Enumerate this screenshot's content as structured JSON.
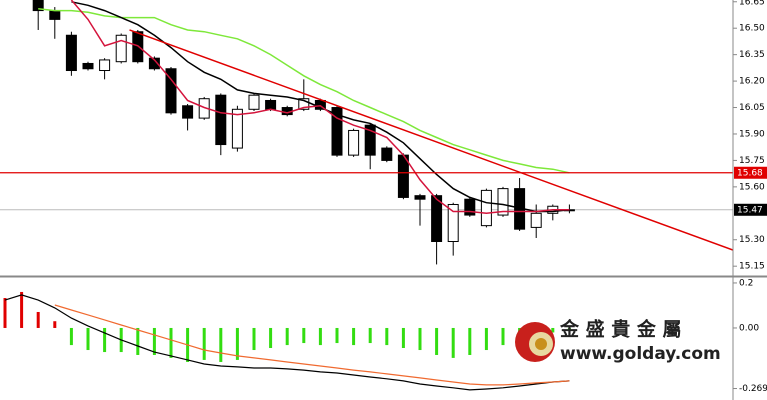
{
  "chart_data": [
    {
      "type": "candlestick",
      "open": [
        null,
        null,
        16.66,
        16.6,
        16.46,
        16.3,
        16.26,
        16.31,
        16.48,
        16.33,
        16.27,
        16.06,
        15.99,
        16.12,
        15.82,
        16.04,
        16.09,
        16.05,
        16.04,
        16.09,
        16.05,
        15.78,
        15.95,
        15.82,
        15.78,
        15.55,
        15.55,
        15.29,
        15.53,
        15.38,
        15.44,
        15.59,
        15.37,
        15.45,
        15.47
      ],
      "high": [
        null,
        null,
        16.69,
        16.62,
        16.48,
        16.31,
        16.33,
        16.47,
        16.49,
        16.34,
        16.28,
        16.07,
        16.11,
        16.13,
        16.06,
        16.13,
        16.1,
        16.06,
        16.21,
        16.1,
        16.06,
        15.93,
        15.96,
        15.83,
        15.79,
        15.56,
        15.56,
        15.51,
        15.54,
        15.59,
        15.6,
        15.65,
        15.5,
        15.5,
        15.5
      ],
      "low": [
        null,
        null,
        16.49,
        16.44,
        16.23,
        16.26,
        16.21,
        16.3,
        16.3,
        16.26,
        16.01,
        15.92,
        15.98,
        15.78,
        15.8,
        16.03,
        16.03,
        16.0,
        16.03,
        16.03,
        15.77,
        15.77,
        15.7,
        15.74,
        15.53,
        15.38,
        15.16,
        15.21,
        15.43,
        15.37,
        15.43,
        15.35,
        15.31,
        15.41,
        15.45
      ],
      "close": [
        null,
        null,
        16.6,
        16.55,
        16.26,
        16.27,
        16.32,
        16.46,
        16.31,
        16.27,
        16.02,
        15.99,
        16.1,
        15.84,
        16.04,
        16.12,
        16.04,
        16.01,
        16.1,
        16.04,
        15.78,
        15.92,
        15.78,
        15.75,
        15.54,
        15.53,
        15.29,
        15.5,
        15.44,
        15.58,
        15.59,
        15.36,
        15.45,
        15.49,
        15.47
      ],
      "up_color": "#ffffff",
      "down_color": "#000000",
      "series": [
        {
          "color": "#7ee83a",
          "values": [
            null,
            null,
            16.61,
            16.6,
            16.6,
            16.59,
            16.57,
            16.56,
            16.56,
            16.56,
            16.52,
            16.49,
            16.48,
            16.46,
            16.44,
            16.4,
            16.35,
            16.29,
            16.23,
            16.18,
            16.14,
            16.09,
            16.05,
            16.01,
            15.97,
            15.92,
            15.88,
            15.84,
            15.81,
            15.78,
            15.75,
            15.73,
            15.71,
            15.7,
            15.68
          ]
        },
        {
          "color": "#000000",
          "values": [
            null,
            null,
            null,
            null,
            16.65,
            16.63,
            16.6,
            16.56,
            16.52,
            16.46,
            16.39,
            16.31,
            16.25,
            16.21,
            16.15,
            16.13,
            16.12,
            16.11,
            16.09,
            16.05,
            16.01,
            15.98,
            15.96,
            15.91,
            15.85,
            15.76,
            15.67,
            15.59,
            15.54,
            15.51,
            15.5,
            15.48,
            15.46,
            15.46,
            15.47
          ]
        },
        {
          "color": "#d4143c",
          "values": [
            null,
            null,
            null,
            null,
            16.66,
            16.55,
            16.4,
            16.43,
            16.4,
            16.32,
            16.21,
            16.09,
            16.05,
            16.02,
            16.01,
            16.02,
            16.04,
            16.02,
            16.05,
            16.06,
            15.99,
            15.95,
            15.92,
            15.88,
            15.78,
            15.64,
            15.53,
            15.46,
            15.46,
            15.45,
            15.46,
            15.46,
            15.46,
            15.47,
            15.47
          ]
        }
      ],
      "trendline": {
        "x": [
          7.5,
          43.9
        ],
        "values": [
          16.49,
          15.24
        ],
        "color": "#e00000"
      },
      "hline": {
        "value": 15.68,
        "color": "#e00000"
      },
      "last": 15.47,
      "ylim": [
        15.1,
        16.66
      ],
      "yticks": [
        16.65,
        {
          "value": 16.5,
          "label": "16.50"
        },
        16.35,
        {
          "value": 16.2,
          "label": "16.20"
        },
        16.05,
        {
          "value": 15.9,
          "label": "15.90"
        },
        15.75,
        {
          "value": 15.6,
          "label": "15.60"
        },
        {
          "value": 15.3,
          "label": "15.30"
        },
        15.15
      ]
    },
    {
      "type": "macd",
      "histogram": {
        "pos_color": "#e00000",
        "neg_color": "#33dd11",
        "values": [
          0.133,
          0.16,
          0.071,
          0.03,
          -0.076,
          -0.098,
          -0.107,
          -0.107,
          -0.12,
          -0.12,
          -0.133,
          -0.151,
          -0.142,
          -0.151,
          -0.142,
          -0.098,
          -0.089,
          -0.076,
          -0.067,
          -0.076,
          -0.067,
          -0.076,
          -0.067,
          -0.076,
          -0.089,
          -0.098,
          -0.12,
          -0.133,
          -0.12,
          -0.098,
          -0.076,
          -0.053,
          -0.03,
          -0.02,
          -0.01
        ]
      },
      "series": [
        {
          "color": "#000000",
          "values": [
            0.124,
            0.147,
            0.124,
            0.089,
            0.044,
            0.009,
            -0.022,
            -0.053,
            -0.08,
            -0.107,
            -0.124,
            -0.142,
            -0.16,
            -0.169,
            -0.173,
            -0.178,
            -0.178,
            -0.182,
            -0.187,
            -0.195,
            -0.2,
            -0.209,
            -0.218,
            -0.226,
            -0.235,
            -0.249,
            -0.258,
            -0.266,
            -0.275,
            -0.271,
            -0.266,
            -0.258,
            -0.249,
            -0.24,
            -0.235
          ]
        },
        {
          "color": "#f06a30",
          "values": [
            null,
            null,
            null,
            0.102,
            0.08,
            0.058,
            0.036,
            0.013,
            -0.009,
            -0.031,
            -0.053,
            -0.075,
            -0.098,
            -0.111,
            -0.124,
            -0.133,
            -0.142,
            -0.151,
            -0.16,
            -0.169,
            -0.178,
            -0.187,
            -0.195,
            -0.204,
            -0.213,
            -0.222,
            -0.231,
            -0.24,
            -0.249,
            -0.253,
            -0.253,
            -0.249,
            -0.244,
            -0.24,
            -0.235
          ]
        }
      ],
      "ylim": [
        -0.32,
        0.222
      ],
      "yticks": [
        0.2,
        {
          "value": 0,
          "label": "0.00"
        },
        -0.269
      ]
    }
  ],
  "watermark": {
    "name": "金 盛 貴 金 屬",
    "url": "www.golday.com"
  }
}
